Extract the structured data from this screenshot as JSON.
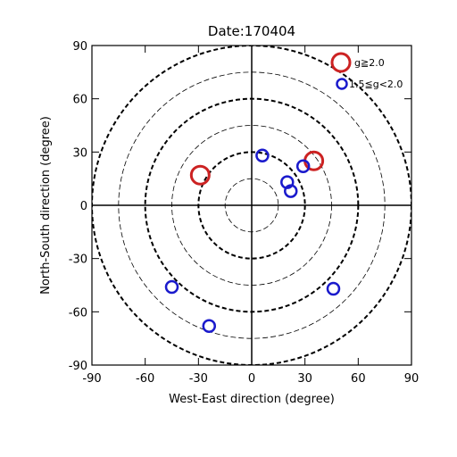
{
  "chart_data": {
    "type": "scatter",
    "title": "Date:170404",
    "xlabel": "West-East direction (degree)",
    "ylabel": "North-South direction (degree)",
    "xlim": [
      -90,
      90
    ],
    "ylim": [
      -90,
      90
    ],
    "xticks": [
      -90,
      -60,
      -30,
      0,
      30,
      60,
      90
    ],
    "yticks": [
      -90,
      -60,
      -30,
      0,
      30,
      60,
      90
    ],
    "xtick_labels": [
      "-90",
      "-60",
      "-30",
      "0",
      "30",
      "60",
      "90"
    ],
    "ytick_labels": [
      "-90",
      "-60",
      "-30",
      "0",
      "30",
      "60",
      "90"
    ],
    "polar_grid": {
      "thin_dashed_radii": [
        15,
        45,
        75
      ],
      "bold_dashed_radii": [
        30,
        60,
        90
      ],
      "crosshair": true
    },
    "legend_position": "top-right",
    "series": [
      {
        "name": "g≧2.0",
        "color": "#cc2222",
        "marker": "large-circle",
        "points": [
          {
            "x": -29,
            "y": 17
          },
          {
            "x": 35,
            "y": 25
          }
        ]
      },
      {
        "name": "1.5≦g<2.0",
        "color": "#1a1acc",
        "marker": "small-circle",
        "points": [
          {
            "x": 6,
            "y": 28
          },
          {
            "x": 29,
            "y": 22
          },
          {
            "x": 20,
            "y": 13
          },
          {
            "x": 22,
            "y": 8
          },
          {
            "x": -45,
            "y": -46
          },
          {
            "x": -24,
            "y": -68
          },
          {
            "x": 46,
            "y": -47
          }
        ]
      }
    ]
  }
}
